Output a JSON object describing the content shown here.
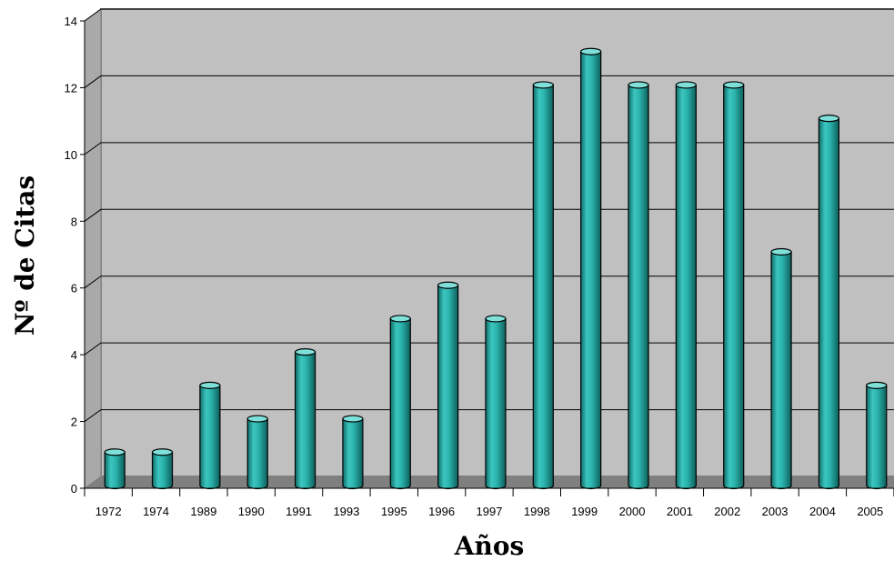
{
  "chart_data": {
    "type": "bar",
    "title": "",
    "xlabel": "Años",
    "ylabel": "Nº de Citas",
    "categories": [
      "1972",
      "1974",
      "1989",
      "1990",
      "1991",
      "1993",
      "1995",
      "1996",
      "1997",
      "1998",
      "1999",
      "2000",
      "2001",
      "2002",
      "2003",
      "2004",
      "2005"
    ],
    "values": [
      1,
      1,
      3,
      2,
      4,
      2,
      5,
      6,
      5,
      12,
      13,
      12,
      12,
      12,
      7,
      11,
      3
    ],
    "ylim": [
      0,
      14
    ],
    "yticks": [
      "0",
      "2",
      "4",
      "6",
      "8",
      "10",
      "12",
      "14"
    ],
    "grid": true,
    "legend": "none",
    "style": "3d-cylinder"
  },
  "colors": {
    "bar": "#2bb3ad",
    "bar_dark": "#0f6e6a",
    "bar_light": "#7fe0da",
    "plot_background": "#c0c0c0",
    "wall_side": "#a9a9a9",
    "floor": "#808080",
    "gridline": "#000000"
  }
}
